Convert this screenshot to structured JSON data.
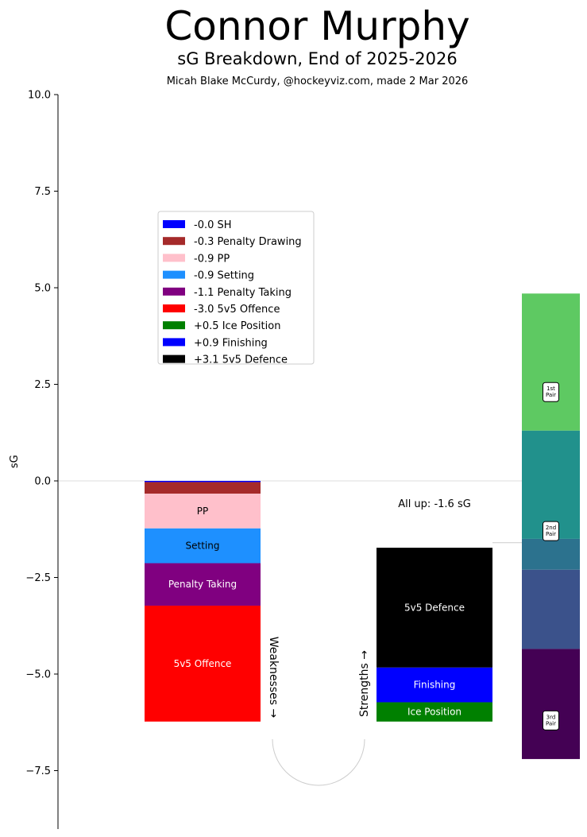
{
  "chart_data": {
    "type": "bar",
    "title": "Connor Murphy",
    "subtitle": "sG Breakdown, End of 2025-2026",
    "credit": "Micah Blake McCurdy, @hockeyviz.com, made 2 Mar 2026",
    "ylabel": "sG",
    "ylim": [
      -9,
      10
    ],
    "yticks": [
      10.0,
      7.5,
      5.0,
      2.5,
      0.0,
      -2.5,
      -5.0,
      -7.5
    ],
    "ytick_labels": [
      "10.0",
      "7.5",
      "5.0",
      "2.5",
      "0.0",
      "−2.5",
      "−5.0",
      "−7.5"
    ],
    "weaknesses": [
      {
        "label": "",
        "value": -0.03,
        "color": "#0000ff",
        "text_color": "#000000"
      },
      {
        "label": "",
        "value": -0.3,
        "color": "#a52a2a",
        "text_color": "#ffffff"
      },
      {
        "label": "PP",
        "value": -0.9,
        "color": "#ffc0cb",
        "text_color": "#000000"
      },
      {
        "label": "Setting",
        "value": -0.9,
        "color": "#1e90ff",
        "text_color": "#000000"
      },
      {
        "label": "Penalty Taking",
        "value": -1.1,
        "color": "#800080",
        "text_color": "#ffffff"
      },
      {
        "label": "5v5 Offence",
        "value": -3.0,
        "color": "#ff0000",
        "text_color": "#ffffff"
      }
    ],
    "strengths": [
      {
        "label": "5v5 Defence",
        "value": 3.1,
        "color": "#000000",
        "text_color": "#ffffff"
      },
      {
        "label": "Finishing",
        "value": 0.9,
        "color": "#0000ff",
        "text_color": "#ffffff"
      },
      {
        "label": "Ice Position",
        "value": 0.5,
        "color": "#008000",
        "text_color": "#ffffff"
      }
    ],
    "weaknesses_label": "Weaknesses →",
    "strengths_label": "Strengths →",
    "allup_value": -1.6,
    "allup_label": "All up: -1.6 sG",
    "legend": {
      "placement": "upper-left",
      "entries": [
        {
          "label": "-0.0 SH",
          "color": "#0000ff"
        },
        {
          "label": "-0.3 Penalty Drawing",
          "color": "#a52a2a"
        },
        {
          "label": "-0.9 PP",
          "color": "#ffc0cb"
        },
        {
          "label": "-0.9 Setting",
          "color": "#1e90ff"
        },
        {
          "label": "-1.1 Penalty Taking",
          "color": "#800080"
        },
        {
          "label": "-3.0 5v5 Offence",
          "color": "#ff0000"
        },
        {
          "label": "+0.5 Ice Position",
          "color": "#008000"
        },
        {
          "label": "+0.9 Finishing",
          "color": "#0000ff"
        },
        {
          "label": "+3.1 5v5 Defence",
          "color": "#000000"
        }
      ]
    },
    "reference_scale": [
      {
        "from": 1.3,
        "to": 4.85,
        "color": "#5ec962"
      },
      {
        "from": -1.5,
        "to": 1.3,
        "color": "#21918c"
      },
      {
        "from": -2.3,
        "to": -1.5,
        "color": "#2c728e"
      },
      {
        "from": -4.35,
        "to": -2.3,
        "color": "#3b528b"
      },
      {
        "from": -7.2,
        "to": -4.35,
        "color": "#440154"
      }
    ],
    "reference_labels": [
      {
        "text": "1st\nPair",
        "value": 2.3
      },
      {
        "text": "2nd\nPair",
        "value": -1.3
      },
      {
        "text": "3rd\nPair",
        "value": -6.2
      }
    ]
  }
}
